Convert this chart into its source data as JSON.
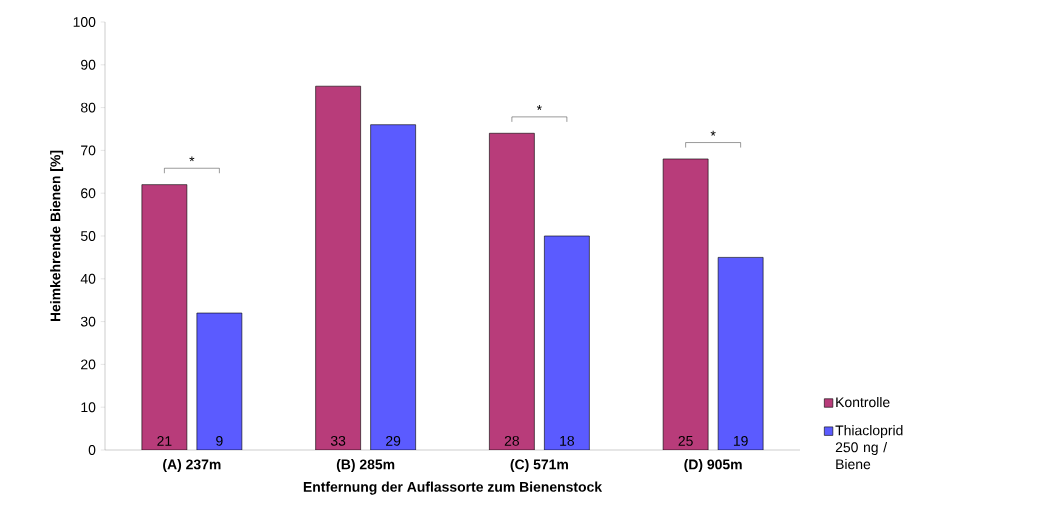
{
  "chart_data": {
    "type": "bar",
    "xlabel": "Entfernung der Auflassorte zum Bienenstock",
    "ylabel": "Heimkehrende Bienen [%]",
    "categories": [
      "(A) 237m",
      "(B) 285m",
      "(C) 571m",
      "(D) 905m"
    ],
    "series": [
      {
        "name": "Kontrolle",
        "color": "#b83c7a",
        "values": [
          62,
          85,
          74,
          68
        ]
      },
      {
        "name": "Thiacloprid 250 ng / Biene",
        "color": "#5b5bff",
        "values": [
          32,
          76,
          50,
          45
        ]
      }
    ],
    "ylim": [
      0,
      100
    ],
    "yticks": [
      0,
      10,
      20,
      30,
      40,
      50,
      60,
      70,
      80,
      90,
      100
    ],
    "grid": false,
    "legend": "right",
    "annotations": [
      "21",
      "9",
      "33",
      "29",
      "28",
      "18",
      "25",
      "19",
      "*",
      "*",
      "*"
    ]
  }
}
